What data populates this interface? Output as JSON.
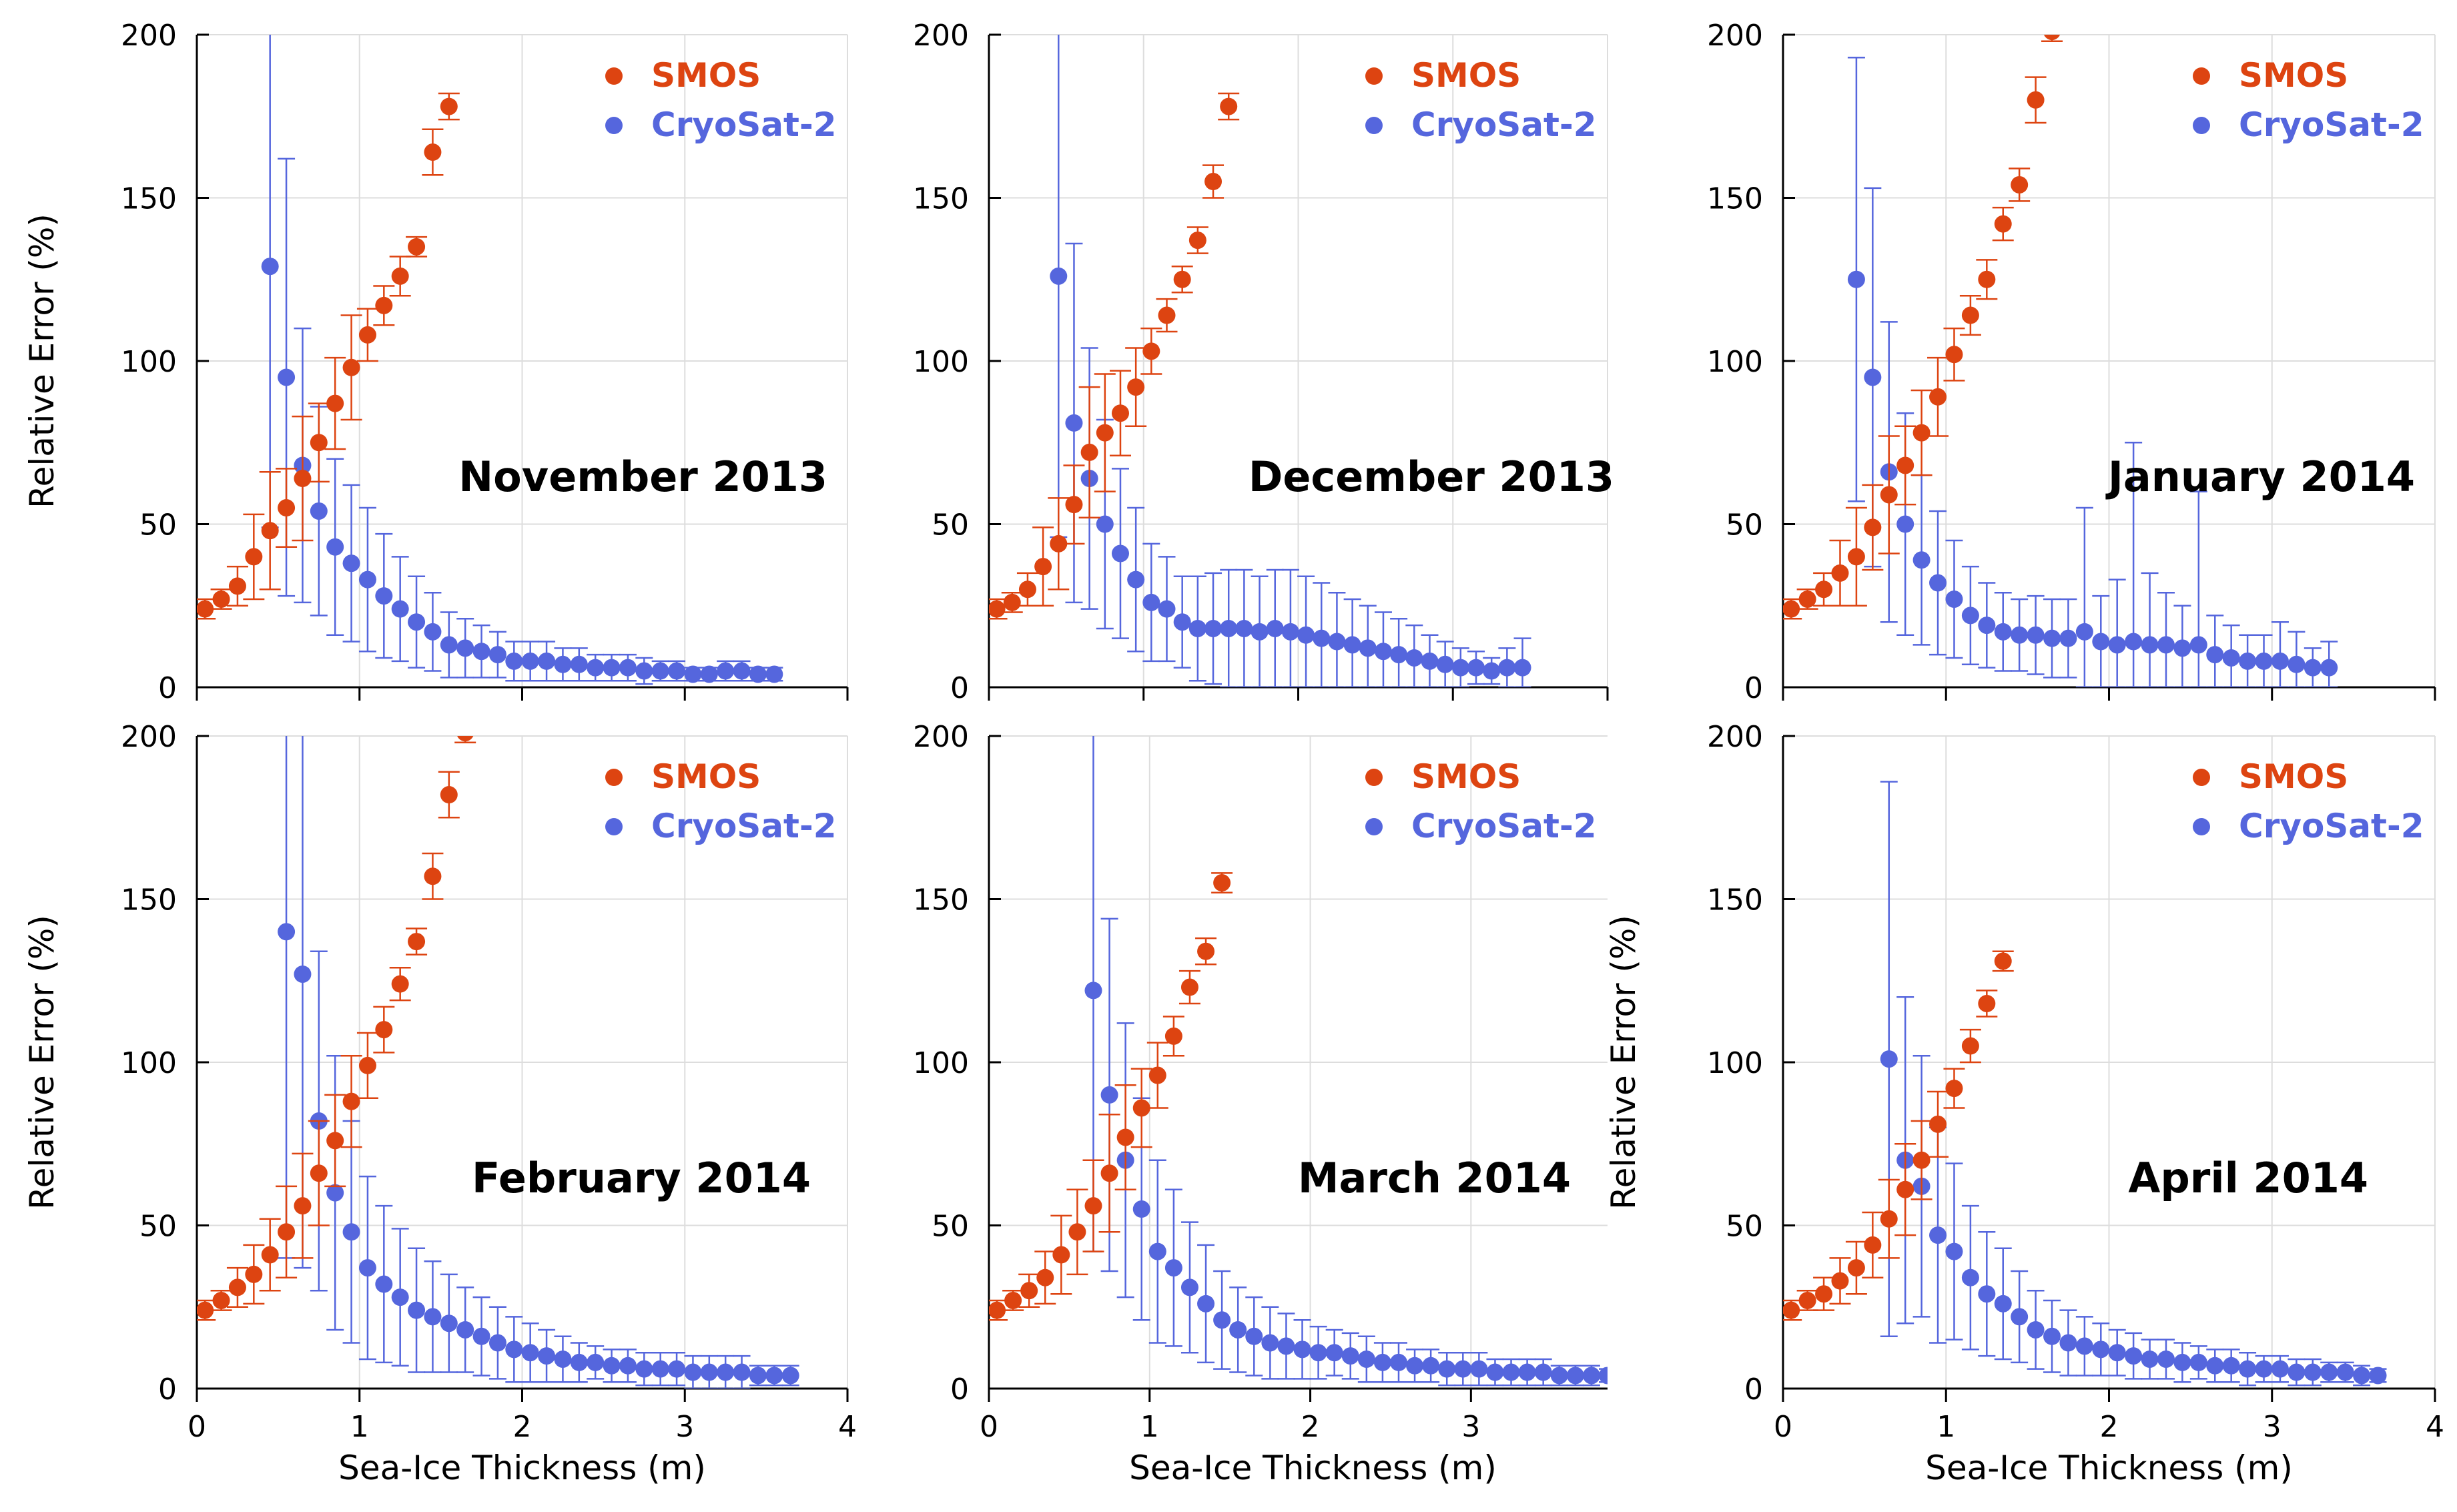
{
  "colors": {
    "smos": "#DD4411",
    "cryosat": "#5566DD",
    "grid": "#dddddd",
    "axis": "#000000"
  },
  "shared": {
    "xlabel": "Sea-Ice Thickness (m)",
    "ylabel": "Relative Error (%)",
    "xticks": [
      "0",
      "1",
      "2",
      "3",
      "4"
    ],
    "yticks": [
      "0",
      "50",
      "100",
      "150",
      "200"
    ],
    "legend": [
      "SMOS",
      "CryoSat-2"
    ]
  },
  "chart_data": [
    {
      "type": "scatter",
      "title": "November 2013",
      "xlim": [
        0,
        4
      ],
      "ylim": [
        0,
        200
      ],
      "series": [
        {
          "name": "SMOS",
          "x": [
            0.05,
            0.15,
            0.25,
            0.35,
            0.45,
            0.55,
            0.65,
            0.75,
            0.85,
            0.95,
            1.05,
            1.15,
            1.25,
            1.35,
            1.45,
            1.55
          ],
          "y": [
            24,
            27,
            31,
            40,
            48,
            55,
            64,
            75,
            87,
            98,
            108,
            117,
            126,
            135,
            164,
            178
          ],
          "err": [
            3,
            3,
            6,
            13,
            18,
            12,
            19,
            12,
            14,
            16,
            8,
            6,
            6,
            3,
            7,
            4
          ]
        },
        {
          "name": "CryoSat-2",
          "x": [
            0.45,
            0.55,
            0.65,
            0.75,
            0.85,
            0.95,
            1.05,
            1.15,
            1.25,
            1.35,
            1.45,
            1.55,
            1.65,
            1.75,
            1.85,
            1.95,
            2.05,
            2.15,
            2.25,
            2.35,
            2.45,
            2.55,
            2.65,
            2.75,
            2.85,
            2.95,
            3.05,
            3.15,
            3.25,
            3.35,
            3.45,
            3.55
          ],
          "y": [
            129,
            95,
            68,
            54,
            43,
            38,
            33,
            28,
            24,
            20,
            17,
            13,
            12,
            11,
            10,
            8,
            8,
            8,
            7,
            7,
            6,
            6,
            6,
            5,
            5,
            5,
            4,
            4,
            5,
            5,
            4,
            4
          ],
          "err": [
            80,
            67,
            42,
            32,
            27,
            24,
            22,
            19,
            16,
            14,
            12,
            10,
            9,
            8,
            7,
            6,
            6,
            6,
            5,
            5,
            4,
            4,
            4,
            4,
            3,
            3,
            2,
            2,
            3,
            3,
            2,
            2
          ]
        }
      ]
    },
    {
      "type": "scatter",
      "title": "December 2013",
      "xlim": [
        0,
        4
      ],
      "ylim": [
        0,
        200
      ],
      "series": [
        {
          "name": "SMOS",
          "x": [
            0.05,
            0.15,
            0.25,
            0.35,
            0.45,
            0.55,
            0.65,
            0.75,
            0.85,
            0.95,
            1.05,
            1.15,
            1.25,
            1.35,
            1.45,
            1.55
          ],
          "y": [
            24,
            26,
            30,
            37,
            44,
            56,
            72,
            78,
            84,
            92,
            103,
            114,
            125,
            137,
            155,
            178
          ],
          "err": [
            3,
            3,
            5,
            12,
            14,
            12,
            20,
            18,
            13,
            12,
            7,
            5,
            4,
            4,
            5,
            4
          ]
        },
        {
          "name": "CryoSat-2",
          "x": [
            0.45,
            0.55,
            0.65,
            0.75,
            0.85,
            0.95,
            1.05,
            1.15,
            1.25,
            1.35,
            1.45,
            1.55,
            1.65,
            1.75,
            1.85,
            1.95,
            2.05,
            2.15,
            2.25,
            2.35,
            2.45,
            2.55,
            2.65,
            2.75,
            2.85,
            2.95,
            3.05,
            3.15,
            3.25,
            3.35,
            3.45
          ],
          "y": [
            126,
            81,
            64,
            50,
            41,
            33,
            26,
            24,
            20,
            18,
            18,
            18,
            18,
            17,
            18,
            17,
            16,
            15,
            14,
            13,
            12,
            11,
            10,
            9,
            8,
            7,
            6,
            6,
            5,
            6,
            6
          ],
          "err": [
            80,
            55,
            40,
            32,
            26,
            22,
            18,
            16,
            14,
            16,
            17,
            18,
            18,
            17,
            18,
            19,
            18,
            17,
            15,
            14,
            13,
            12,
            11,
            10,
            8,
            7,
            6,
            5,
            4,
            6,
            9
          ]
        }
      ]
    },
    {
      "type": "scatter",
      "title": "January 2014",
      "xlim": [
        0,
        4
      ],
      "ylim": [
        0,
        200
      ],
      "series": [
        {
          "name": "SMOS",
          "x": [
            0.05,
            0.15,
            0.25,
            0.35,
            0.45,
            0.55,
            0.65,
            0.75,
            0.85,
            0.95,
            1.05,
            1.15,
            1.25,
            1.35,
            1.45,
            1.55,
            1.65
          ],
          "y": [
            24,
            27,
            30,
            35,
            40,
            49,
            59,
            68,
            78,
            89,
            102,
            114,
            125,
            142,
            154,
            180,
            201
          ],
          "err": [
            3,
            3,
            5,
            10,
            15,
            13,
            18,
            12,
            13,
            12,
            8,
            6,
            6,
            5,
            5,
            7,
            3
          ]
        },
        {
          "name": "CryoSat-2",
          "x": [
            0.45,
            0.55,
            0.65,
            0.75,
            0.85,
            0.95,
            1.05,
            1.15,
            1.25,
            1.35,
            1.45,
            1.55,
            1.65,
            1.75,
            1.85,
            1.95,
            2.05,
            2.15,
            2.25,
            2.35,
            2.45,
            2.55,
            2.65,
            2.75,
            2.85,
            2.95,
            3.05,
            3.15,
            3.25,
            3.35
          ],
          "y": [
            125,
            95,
            66,
            50,
            39,
            32,
            27,
            22,
            19,
            17,
            16,
            16,
            15,
            15,
            17,
            14,
            13,
            14,
            13,
            13,
            12,
            13,
            10,
            9,
            8,
            8,
            8,
            7,
            6,
            6
          ],
          "err": [
            68,
            58,
            46,
            34,
            26,
            22,
            18,
            15,
            13,
            12,
            11,
            12,
            12,
            12,
            38,
            14,
            20,
            61,
            22,
            16,
            13,
            47,
            12,
            10,
            8,
            8,
            12,
            10,
            6,
            8
          ]
        }
      ]
    },
    {
      "type": "scatter",
      "title": "February 2014",
      "xlim": [
        0,
        4
      ],
      "ylim": [
        0,
        200
      ],
      "series": [
        {
          "name": "SMOS",
          "x": [
            0.05,
            0.15,
            0.25,
            0.35,
            0.45,
            0.55,
            0.65,
            0.75,
            0.85,
            0.95,
            1.05,
            1.15,
            1.25,
            1.35,
            1.45,
            1.55,
            1.65
          ],
          "y": [
            24,
            27,
            31,
            35,
            41,
            48,
            56,
            66,
            76,
            88,
            99,
            110,
            124,
            137,
            157,
            182,
            201
          ],
          "err": [
            3,
            3,
            6,
            9,
            11,
            14,
            16,
            16,
            14,
            14,
            10,
            7,
            5,
            4,
            7,
            7,
            3
          ]
        },
        {
          "name": "CryoSat-2",
          "x": [
            0.55,
            0.65,
            0.75,
            0.85,
            0.95,
            1.05,
            1.15,
            1.25,
            1.35,
            1.45,
            1.55,
            1.65,
            1.75,
            1.85,
            1.95,
            2.05,
            2.15,
            2.25,
            2.35,
            2.45,
            2.55,
            2.65,
            2.75,
            2.85,
            2.95,
            3.05,
            3.15,
            3.25,
            3.35,
            3.45,
            3.55,
            3.65
          ],
          "y": [
            140,
            127,
            82,
            60,
            48,
            37,
            32,
            28,
            24,
            22,
            20,
            18,
            16,
            14,
            12,
            11,
            10,
            9,
            8,
            8,
            7,
            7,
            6,
            6,
            6,
            5,
            5,
            5,
            5,
            4,
            4,
            4
          ],
          "err": [
            100,
            90,
            52,
            42,
            34,
            28,
            24,
            21,
            19,
            17,
            15,
            13,
            12,
            11,
            10,
            9,
            8,
            7,
            6,
            5,
            5,
            5,
            5,
            5,
            5,
            5,
            5,
            5,
            5,
            3,
            3,
            3
          ]
        }
      ]
    },
    {
      "type": "scatter",
      "title": "March 2014",
      "xlim": [
        0,
        3.85
      ],
      "ylim": [
        0,
        200
      ],
      "series": [
        {
          "name": "SMOS",
          "x": [
            0.05,
            0.15,
            0.25,
            0.35,
            0.45,
            0.55,
            0.65,
            0.75,
            0.85,
            0.95,
            1.05,
            1.15,
            1.25,
            1.35,
            1.45
          ],
          "y": [
            24,
            27,
            30,
            34,
            41,
            48,
            56,
            66,
            77,
            86,
            96,
            108,
            123,
            134,
            155
          ],
          "err": [
            3,
            3,
            5,
            8,
            12,
            13,
            14,
            18,
            16,
            12,
            10,
            6,
            5,
            4,
            3
          ]
        },
        {
          "name": "CryoSat-2",
          "x": [
            0.65,
            0.75,
            0.85,
            0.95,
            1.05,
            1.15,
            1.25,
            1.35,
            1.45,
            1.55,
            1.65,
            1.75,
            1.85,
            1.95,
            2.05,
            2.15,
            2.25,
            2.35,
            2.45,
            2.55,
            2.65,
            2.75,
            2.85,
            2.95,
            3.05,
            3.15,
            3.25,
            3.35,
            3.45,
            3.55,
            3.65,
            3.75,
            3.85
          ],
          "y": [
            122,
            90,
            70,
            55,
            42,
            37,
            31,
            26,
            21,
            18,
            16,
            14,
            13,
            12,
            11,
            11,
            10,
            9,
            8,
            8,
            7,
            7,
            6,
            6,
            6,
            5,
            5,
            5,
            5,
            4,
            4,
            4,
            4
          ],
          "err": [
            80,
            54,
            42,
            34,
            28,
            24,
            20,
            18,
            15,
            13,
            12,
            11,
            10,
            9,
            8,
            7,
            7,
            7,
            6,
            6,
            5,
            5,
            5,
            5,
            5,
            4,
            4,
            4,
            4,
            3,
            3,
            3,
            2
          ]
        }
      ]
    },
    {
      "type": "scatter",
      "title": "April 2014",
      "xlim": [
        0,
        4
      ],
      "ylim": [
        0,
        200
      ],
      "series": [
        {
          "name": "SMOS",
          "x": [
            0.05,
            0.15,
            0.25,
            0.35,
            0.45,
            0.55,
            0.65,
            0.75,
            0.85,
            0.95,
            1.05,
            1.15,
            1.25,
            1.35
          ],
          "y": [
            24,
            27,
            29,
            33,
            37,
            44,
            52,
            61,
            70,
            81,
            92,
            105,
            118,
            131
          ],
          "err": [
            3,
            3,
            5,
            7,
            8,
            10,
            12,
            14,
            12,
            10,
            6,
            5,
            4,
            3
          ]
        },
        {
          "name": "CryoSat-2",
          "x": [
            0.65,
            0.75,
            0.85,
            0.95,
            1.05,
            1.15,
            1.25,
            1.35,
            1.45,
            1.55,
            1.65,
            1.75,
            1.85,
            1.95,
            2.05,
            2.15,
            2.25,
            2.35,
            2.45,
            2.55,
            2.65,
            2.75,
            2.85,
            2.95,
            3.05,
            3.15,
            3.25,
            3.35,
            3.45,
            3.55,
            3.65
          ],
          "y": [
            101,
            70,
            62,
            47,
            42,
            34,
            29,
            26,
            22,
            18,
            16,
            14,
            13,
            12,
            11,
            10,
            9,
            9,
            8,
            8,
            7,
            7,
            6,
            6,
            6,
            5,
            5,
            5,
            5,
            4,
            4
          ],
          "err": [
            85,
            50,
            40,
            33,
            27,
            22,
            19,
            17,
            14,
            12,
            11,
            10,
            9,
            8,
            7,
            7,
            6,
            6,
            6,
            5,
            5,
            5,
            5,
            4,
            4,
            4,
            4,
            3,
            3,
            3,
            2
          ]
        }
      ]
    }
  ]
}
